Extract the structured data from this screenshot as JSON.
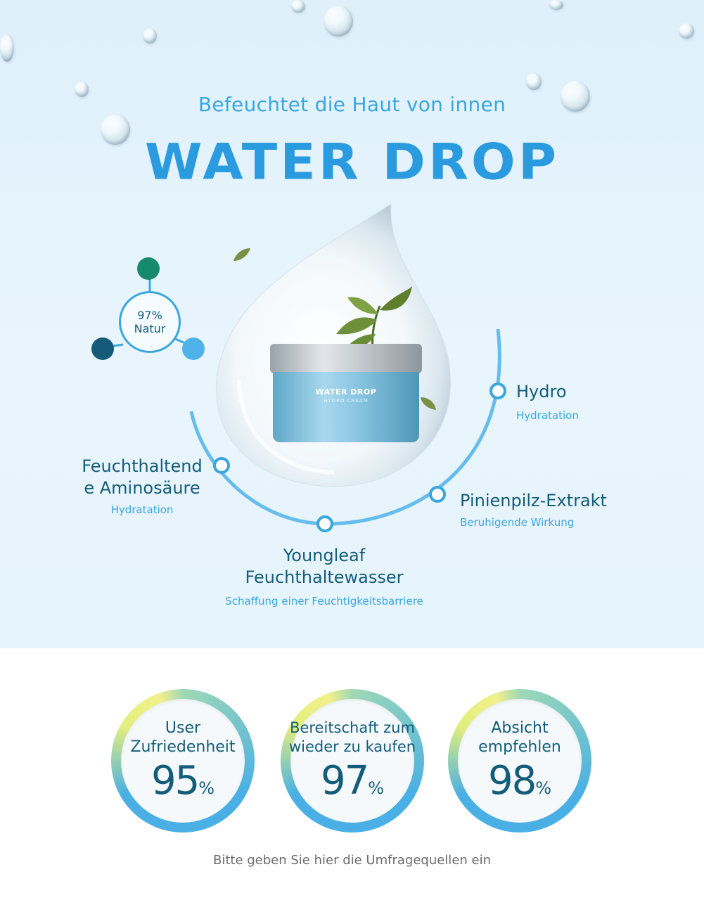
{
  "header": {
    "subtitle": "Befeuchtet die Haut von innen",
    "title": "WATER DROP"
  },
  "badge": {
    "percent": "97%",
    "label": "Natur"
  },
  "product": {
    "brand": "WATER DROP",
    "sub": "HYDRO CREAM"
  },
  "ingredients": [
    {
      "title": "Hydro",
      "subtitle": "Hydratation"
    },
    {
      "title_line1": "Feuchthaltend",
      "title_line2": "e Aminosäure",
      "subtitle": "Hydratation"
    },
    {
      "title": "Pinienpilz-Extrakt",
      "subtitle": "Beruhigende Wirkung"
    },
    {
      "title_line1": "Youngleaf",
      "title_line2": "Feuchthaltewasser",
      "subtitle": "Schaffung einer Feuchtigkeitsbarriere"
    }
  ],
  "stats": [
    {
      "label_line1": "User",
      "label_line2": "Zufriedenheit",
      "value": "95",
      "unit": "%"
    },
    {
      "label_line1": "Bereitschaft zum",
      "label_line2": "wieder zu kaufen",
      "value": "97",
      "unit": "%"
    },
    {
      "label_line1": "Absicht",
      "label_line2": "empfehlen",
      "value": "98",
      "unit": "%"
    }
  ],
  "footnote": "Bitte geben Sie hier die Umfragequellen ein",
  "colors": {
    "primary_blue": "#3aa6df",
    "dark_teal": "#135c7a",
    "green_teal": "#178a6e",
    "navy_teal": "#155a78",
    "light_blue": "#4fb3ea"
  }
}
